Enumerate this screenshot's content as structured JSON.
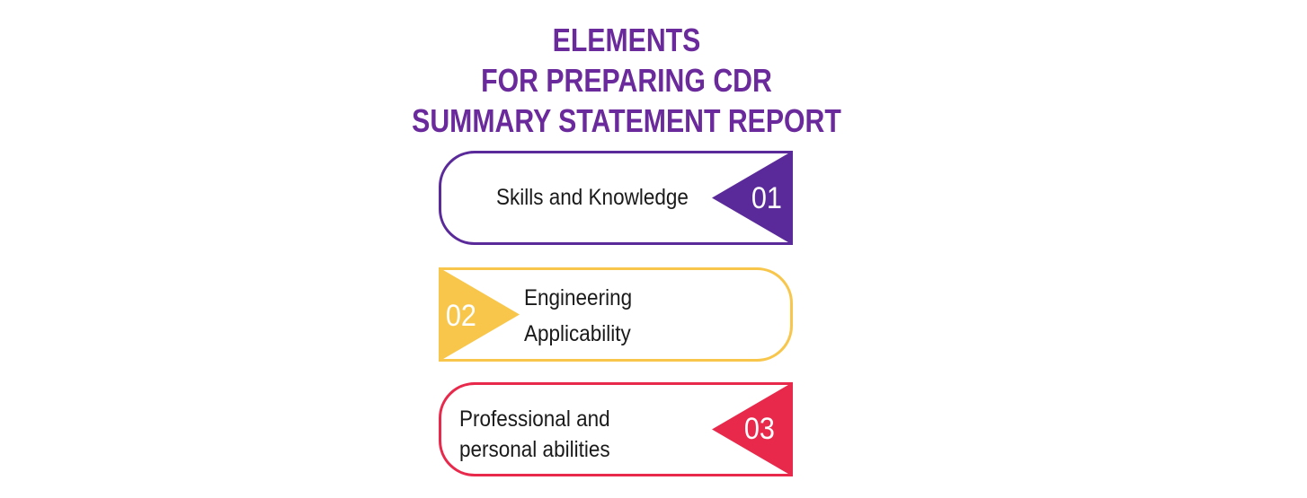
{
  "title": {
    "lines": [
      "ELEMENTS",
      "FOR PREPARING CDR",
      "SUMMARY STATEMENT  REPORT"
    ],
    "color": "#6a2a9c"
  },
  "items": [
    {
      "number": "01",
      "lines": [
        "Skills and Knowledge"
      ],
      "color": "#5a2a9a",
      "marker_side": "right"
    },
    {
      "number": "02",
      "lines": [
        "Engineering",
        "Applicability"
      ],
      "color": "#f7c64b",
      "marker_side": "left"
    },
    {
      "number": "03",
      "lines": [
        "Professional and",
        "personal abilities"
      ],
      "color": "#e8294b",
      "marker_side": "right"
    }
  ]
}
